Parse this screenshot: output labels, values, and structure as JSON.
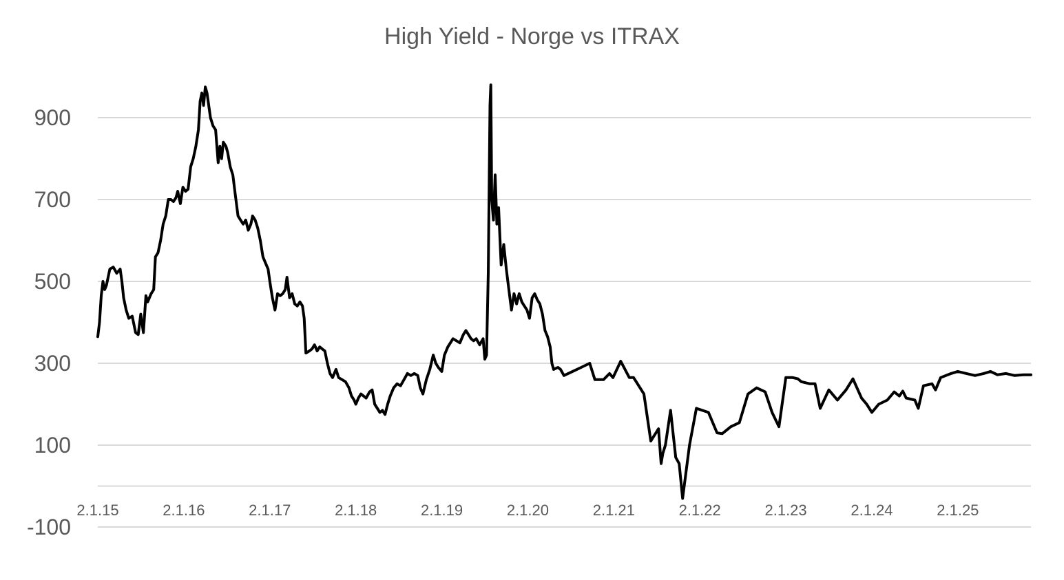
{
  "chart_data": {
    "type": "line",
    "title": "High Yield - Norge vs ITRAX",
    "xlabel": "",
    "ylabel": "",
    "yticks": [
      900,
      700,
      500,
      300,
      100,
      -100
    ],
    "ylim": [
      -100,
      1000
    ],
    "xtick_labels": [
      "2.1.15",
      "2.1.16",
      "2.1.17",
      "2.1.18",
      "2.1.19",
      "2.1.20",
      "2.1.21",
      "2.1.22",
      "2.1.23",
      "2.1.24",
      "2.1.25"
    ],
    "x_range_years": [
      2015.0,
      2025.85
    ],
    "grid": true,
    "legend": "none",
    "series": [
      {
        "color": "#000000",
        "points": [
          [
            2015.0,
            365
          ],
          [
            2015.02,
            400
          ],
          [
            2015.04,
            465
          ],
          [
            2015.06,
            500
          ],
          [
            2015.08,
            480
          ],
          [
            2015.1,
            490
          ],
          [
            2015.14,
            530
          ],
          [
            2015.18,
            535
          ],
          [
            2015.22,
            520
          ],
          [
            2015.26,
            530
          ],
          [
            2015.28,
            500
          ],
          [
            2015.3,
            460
          ],
          [
            2015.33,
            430
          ],
          [
            2015.36,
            410
          ],
          [
            2015.4,
            415
          ],
          [
            2015.44,
            375
          ],
          [
            2015.47,
            370
          ],
          [
            2015.5,
            420
          ],
          [
            2015.53,
            375
          ],
          [
            2015.56,
            465
          ],
          [
            2015.58,
            450
          ],
          [
            2015.62,
            470
          ],
          [
            2015.65,
            480
          ],
          [
            2015.67,
            560
          ],
          [
            2015.7,
            570
          ],
          [
            2015.73,
            600
          ],
          [
            2015.76,
            640
          ],
          [
            2015.79,
            660
          ],
          [
            2015.82,
            700
          ],
          [
            2015.85,
            700
          ],
          [
            2015.88,
            695
          ],
          [
            2015.91,
            705
          ],
          [
            2015.93,
            720
          ],
          [
            2015.96,
            690
          ],
          [
            2015.99,
            730
          ],
          [
            2016.02,
            720
          ],
          [
            2016.05,
            725
          ],
          [
            2016.08,
            780
          ],
          [
            2016.11,
            800
          ],
          [
            2016.14,
            830
          ],
          [
            2016.17,
            870
          ],
          [
            2016.19,
            940
          ],
          [
            2016.21,
            960
          ],
          [
            2016.23,
            930
          ],
          [
            2016.25,
            975
          ],
          [
            2016.27,
            960
          ],
          [
            2016.29,
            930
          ],
          [
            2016.31,
            900
          ],
          [
            2016.34,
            880
          ],
          [
            2016.37,
            870
          ],
          [
            2016.4,
            790
          ],
          [
            2016.42,
            830
          ],
          [
            2016.44,
            800
          ],
          [
            2016.46,
            840
          ],
          [
            2016.49,
            830
          ],
          [
            2016.51,
            815
          ],
          [
            2016.54,
            780
          ],
          [
            2016.57,
            760
          ],
          [
            2016.6,
            710
          ],
          [
            2016.63,
            660
          ],
          [
            2016.66,
            650
          ],
          [
            2016.69,
            640
          ],
          [
            2016.72,
            650
          ],
          [
            2016.75,
            625
          ],
          [
            2016.78,
            640
          ],
          [
            2016.8,
            660
          ],
          [
            2016.83,
            650
          ],
          [
            2016.86,
            630
          ],
          [
            2016.89,
            600
          ],
          [
            2016.92,
            560
          ],
          [
            2016.95,
            545
          ],
          [
            2016.98,
            530
          ],
          [
            2017.0,
            500
          ],
          [
            2017.03,
            460
          ],
          [
            2017.06,
            430
          ],
          [
            2017.09,
            470
          ],
          [
            2017.12,
            465
          ],
          [
            2017.15,
            470
          ],
          [
            2017.18,
            480
          ],
          [
            2017.2,
            510
          ],
          [
            2017.23,
            460
          ],
          [
            2017.26,
            470
          ],
          [
            2017.29,
            445
          ],
          [
            2017.32,
            440
          ],
          [
            2017.35,
            450
          ],
          [
            2017.38,
            440
          ],
          [
            2017.4,
            410
          ],
          [
            2017.42,
            325
          ],
          [
            2017.46,
            330
          ],
          [
            2017.49,
            335
          ],
          [
            2017.52,
            345
          ],
          [
            2017.55,
            330
          ],
          [
            2017.58,
            340
          ],
          [
            2017.61,
            335
          ],
          [
            2017.64,
            330
          ],
          [
            2017.67,
            300
          ],
          [
            2017.7,
            275
          ],
          [
            2017.73,
            265
          ],
          [
            2017.77,
            285
          ],
          [
            2017.8,
            265
          ],
          [
            2017.84,
            260
          ],
          [
            2017.88,
            255
          ],
          [
            2017.92,
            240
          ],
          [
            2017.95,
            220
          ],
          [
            2017.98,
            210
          ],
          [
            2018.0,
            200
          ],
          [
            2018.03,
            215
          ],
          [
            2018.06,
            225
          ],
          [
            2018.09,
            220
          ],
          [
            2018.12,
            215
          ],
          [
            2018.16,
            230
          ],
          [
            2018.19,
            235
          ],
          [
            2018.22,
            200
          ],
          [
            2018.25,
            190
          ],
          [
            2018.28,
            180
          ],
          [
            2018.31,
            185
          ],
          [
            2018.34,
            175
          ],
          [
            2018.37,
            200
          ],
          [
            2018.4,
            220
          ],
          [
            2018.44,
            240
          ],
          [
            2018.48,
            250
          ],
          [
            2018.52,
            245
          ],
          [
            2018.56,
            260
          ],
          [
            2018.6,
            275
          ],
          [
            2018.64,
            270
          ],
          [
            2018.68,
            275
          ],
          [
            2018.72,
            270
          ],
          [
            2018.75,
            240
          ],
          [
            2018.78,
            225
          ],
          [
            2018.82,
            260
          ],
          [
            2018.86,
            285
          ],
          [
            2018.9,
            320
          ],
          [
            2018.93,
            300
          ],
          [
            2018.96,
            290
          ],
          [
            2019.0,
            280
          ],
          [
            2019.03,
            320
          ],
          [
            2019.07,
            340
          ],
          [
            2019.1,
            350
          ],
          [
            2019.13,
            360
          ],
          [
            2019.17,
            355
          ],
          [
            2019.21,
            350
          ],
          [
            2019.25,
            370
          ],
          [
            2019.28,
            380
          ],
          [
            2019.31,
            370
          ],
          [
            2019.34,
            360
          ],
          [
            2019.37,
            355
          ],
          [
            2019.4,
            360
          ],
          [
            2019.44,
            345
          ],
          [
            2019.48,
            360
          ],
          [
            2019.5,
            310
          ],
          [
            2019.52,
            320
          ],
          [
            2019.54,
            520
          ],
          [
            2019.56,
            930
          ],
          [
            2019.57,
            980
          ],
          [
            2019.58,
            700
          ],
          [
            2019.6,
            650
          ],
          [
            2019.62,
            760
          ],
          [
            2019.64,
            640
          ],
          [
            2019.66,
            680
          ],
          [
            2019.69,
            540
          ],
          [
            2019.72,
            590
          ],
          [
            2019.75,
            530
          ],
          [
            2019.78,
            480
          ],
          [
            2019.81,
            430
          ],
          [
            2019.84,
            470
          ],
          [
            2019.87,
            445
          ],
          [
            2019.9,
            470
          ],
          [
            2019.93,
            450
          ],
          [
            2019.96,
            440
          ],
          [
            2019.99,
            430
          ],
          [
            2020.02,
            410
          ],
          [
            2020.05,
            460
          ],
          [
            2020.08,
            470
          ],
          [
            2020.11,
            455
          ],
          [
            2020.14,
            445
          ],
          [
            2020.17,
            420
          ],
          [
            2020.2,
            380
          ],
          [
            2020.23,
            365
          ],
          [
            2020.26,
            340
          ],
          [
            2020.28,
            300
          ],
          [
            2020.3,
            285
          ],
          [
            2020.35,
            290
          ],
          [
            2020.38,
            285
          ],
          [
            2020.42,
            270
          ],
          [
            2020.52,
            280
          ],
          [
            2020.62,
            290
          ],
          [
            2020.72,
            300
          ],
          [
            2020.78,
            260
          ],
          [
            2020.88,
            260
          ],
          [
            2020.95,
            275
          ],
          [
            2020.99,
            265
          ],
          [
            2021.08,
            305
          ],
          [
            2021.18,
            265
          ],
          [
            2021.23,
            265
          ],
          [
            2021.35,
            225
          ],
          [
            2021.43,
            110
          ],
          [
            2021.52,
            140
          ],
          [
            2021.55,
            55
          ],
          [
            2021.57,
            80
          ],
          [
            2021.6,
            100
          ],
          [
            2021.66,
            185
          ],
          [
            2021.72,
            70
          ],
          [
            2021.76,
            55
          ],
          [
            2021.8,
            -30
          ],
          [
            2021.88,
            100
          ],
          [
            2021.96,
            190
          ],
          [
            2022.1,
            180
          ],
          [
            2022.2,
            130
          ],
          [
            2022.26,
            128
          ],
          [
            2022.36,
            145
          ],
          [
            2022.46,
            155
          ],
          [
            2022.56,
            225
          ],
          [
            2022.66,
            240
          ],
          [
            2022.76,
            230
          ],
          [
            2022.84,
            180
          ],
          [
            2022.92,
            145
          ],
          [
            2023.0,
            265
          ],
          [
            2023.08,
            265
          ],
          [
            2023.14,
            262
          ],
          [
            2023.18,
            255
          ],
          [
            2023.28,
            250
          ],
          [
            2023.34,
            250
          ],
          [
            2023.4,
            190
          ],
          [
            2023.5,
            235
          ],
          [
            2023.6,
            210
          ],
          [
            2023.7,
            235
          ],
          [
            2023.78,
            262
          ],
          [
            2023.88,
            215
          ],
          [
            2023.94,
            200
          ],
          [
            2024.0,
            180
          ],
          [
            2024.08,
            200
          ],
          [
            2024.18,
            210
          ],
          [
            2024.26,
            230
          ],
          [
            2024.32,
            220
          ],
          [
            2024.36,
            232
          ],
          [
            2024.4,
            215
          ],
          [
            2024.5,
            210
          ],
          [
            2024.54,
            190
          ],
          [
            2024.6,
            245
          ],
          [
            2024.7,
            250
          ],
          [
            2024.74,
            235
          ],
          [
            2024.8,
            265
          ],
          [
            2024.92,
            275
          ],
          [
            2025.0,
            280
          ],
          [
            2025.1,
            275
          ],
          [
            2025.2,
            270
          ],
          [
            2025.3,
            275
          ],
          [
            2025.38,
            280
          ],
          [
            2025.46,
            272
          ],
          [
            2025.56,
            275
          ],
          [
            2025.66,
            270
          ],
          [
            2025.76,
            272
          ],
          [
            2025.85,
            272
          ]
        ]
      }
    ]
  }
}
